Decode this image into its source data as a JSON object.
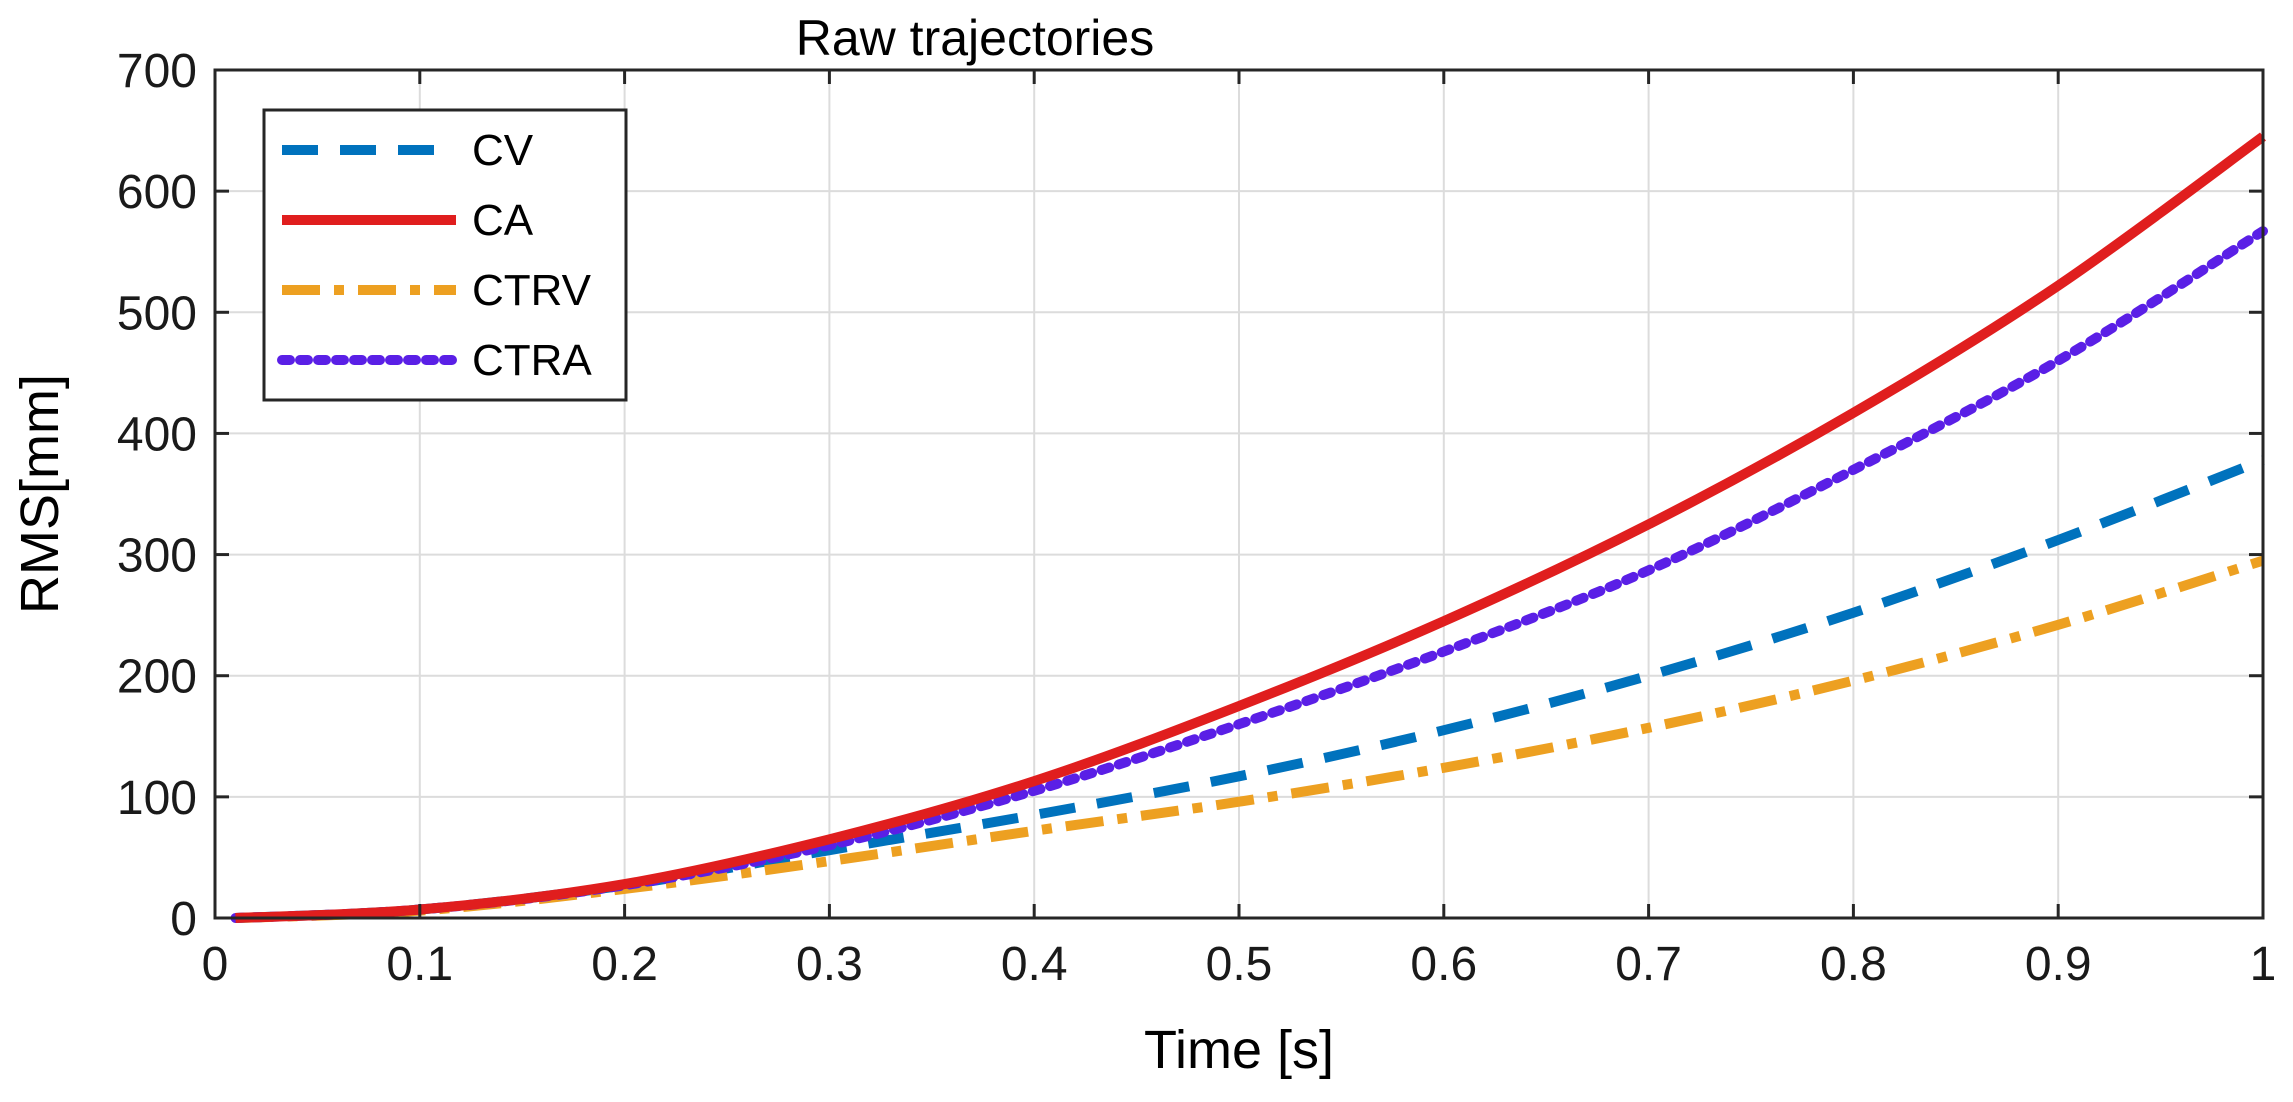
{
  "chart_data": {
    "type": "line",
    "title": "Raw trajectories",
    "xlabel": "Time [s]",
    "ylabel": "RMS[mm]",
    "xlim": [
      0,
      1
    ],
    "ylim": [
      0,
      700
    ],
    "grid": true,
    "legend_position": "top-left",
    "x_ticks": [
      0,
      0.1,
      0.2,
      0.3,
      0.4,
      0.5,
      0.6,
      0.7,
      0.8,
      0.9,
      1
    ],
    "x_tick_labels": [
      "0",
      "0.1",
      "0.2",
      "0.3",
      "0.4",
      "0.5",
      "0.6",
      "0.7",
      "0.8",
      "0.9",
      "1"
    ],
    "y_ticks": [
      0,
      100,
      200,
      300,
      400,
      500,
      600,
      700
    ],
    "y_tick_labels": [
      "0",
      "100",
      "200",
      "300",
      "400",
      "500",
      "600",
      "700"
    ],
    "x": [
      0.01,
      0.1,
      0.2,
      0.3,
      0.4,
      0.5,
      0.6,
      0.7,
      0.8,
      0.9,
      1.0
    ],
    "series": [
      {
        "name": "CV",
        "color": "#0072BD",
        "style": "dashed",
        "values": [
          0,
          7,
          27,
          56,
          85,
          117,
          155,
          200,
          252,
          312,
          378
        ]
      },
      {
        "name": "CA",
        "color": "#E01E1E",
        "style": "solid",
        "values": [
          0,
          7,
          28,
          65,
          113,
          175,
          245,
          325,
          417,
          522,
          645
        ]
      },
      {
        "name": "CTRV",
        "color": "#EDA021",
        "style": "dashdot",
        "values": [
          0,
          6,
          24,
          47,
          72,
          96,
          124,
          157,
          196,
          242,
          295
        ]
      },
      {
        "name": "CTRA",
        "color": "#5A1FE6",
        "style": "dotted",
        "values": [
          0,
          7,
          27,
          60,
          105,
          160,
          220,
          287,
          370,
          460,
          567
        ]
      }
    ]
  }
}
